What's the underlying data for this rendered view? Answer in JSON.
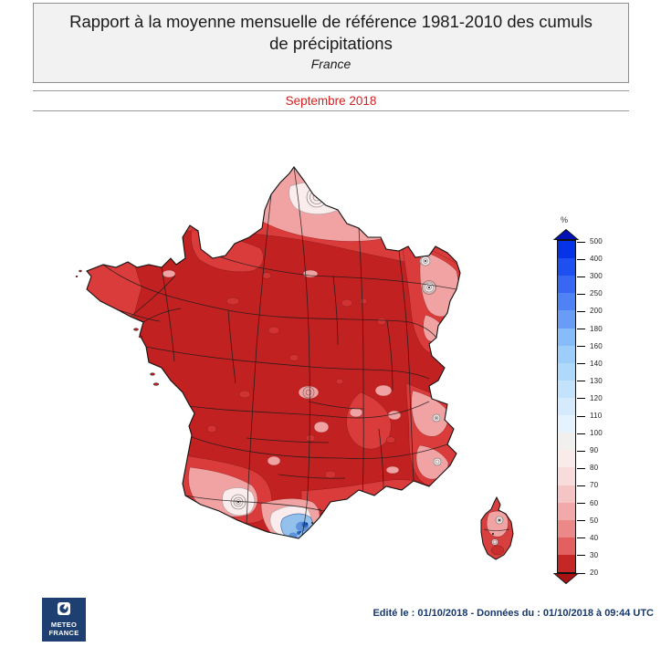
{
  "header": {
    "title_line1": "Rapport à la moyenne mensuelle de référence 1981-2010 des cumuls",
    "title_line2": "de précipitations",
    "region": "France",
    "period": "Septembre 2018"
  },
  "legend": {
    "unit": "%",
    "ticks": [
      "500",
      "400",
      "300",
      "250",
      "200",
      "180",
      "160",
      "140",
      "130",
      "120",
      "110",
      "100",
      "90",
      "80",
      "70",
      "60",
      "50",
      "40",
      "30",
      "20"
    ],
    "segments": [
      {
        "color": "#0633E8"
      },
      {
        "color": "#1E4FF0"
      },
      {
        "color": "#3767F3"
      },
      {
        "color": "#4F82F5"
      },
      {
        "color": "#699CF7"
      },
      {
        "color": "#86BCFA"
      },
      {
        "color": "#9CCDFB",
        "dotted": true
      },
      {
        "color": "#AFD9FB",
        "dotted": true
      },
      {
        "color": "#C3E2FC"
      },
      {
        "color": "#D5EBFD"
      },
      {
        "color": "#E5F3FE"
      },
      {
        "color": "#F1F0EE",
        "dotted": true
      },
      {
        "color": "#FAEBEB"
      },
      {
        "color": "#F8DBDB"
      },
      {
        "color": "#F5C5C5"
      },
      {
        "color": "#F1A9A9"
      },
      {
        "color": "#EB8888"
      },
      {
        "color": "#E26060"
      },
      {
        "color": "#C52727"
      }
    ],
    "arrow_top_color": "#0312B4",
    "arrow_bottom_color": "#A81212"
  },
  "footer": {
    "logo_line1": "METEO",
    "logo_line2": "FRANCE",
    "issued": "Edité le : 01/10/2018 - Données du : 01/10/2018 à 09:44 UTC"
  },
  "colors": {
    "period_text": "#D42020",
    "footer_text": "#16386B",
    "logo_bg": "#1E3F72",
    "map_base_red": "#C22121",
    "map_blue_anomaly": "#2B66C4"
  }
}
